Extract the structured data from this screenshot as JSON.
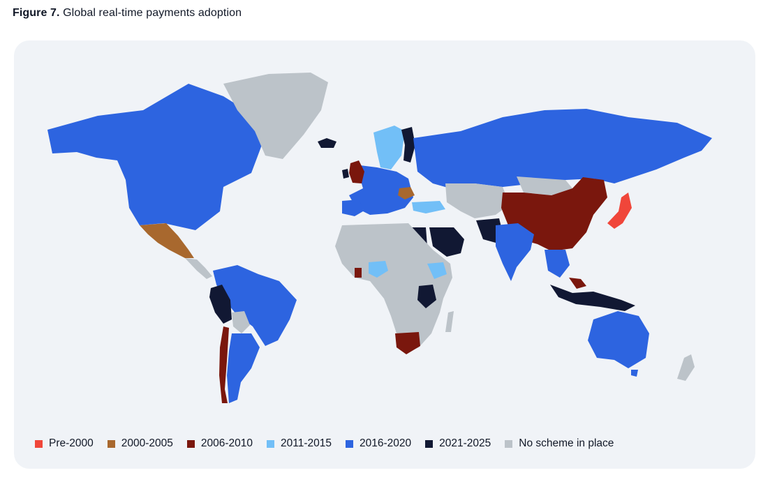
{
  "figure": {
    "label": "Figure 7.",
    "title": "Global real-time payments adoption"
  },
  "legend": [
    {
      "key": "pre2000",
      "label": "Pre-2000",
      "color": "#f0463a"
    },
    {
      "key": "p2000",
      "label": "2000-2005",
      "color": "#a8682e"
    },
    {
      "key": "p2006",
      "label": "2006-2010",
      "color": "#7a170d"
    },
    {
      "key": "p2011",
      "label": "2011-2015",
      "color": "#72bff7"
    },
    {
      "key": "p2016",
      "label": "2016-2020",
      "color": "#2d64e0"
    },
    {
      "key": "p2021",
      "label": "2021-2025",
      "color": "#111833"
    },
    {
      "key": "none",
      "label": "No scheme in place",
      "color": "#bcc3c9"
    }
  ]
}
